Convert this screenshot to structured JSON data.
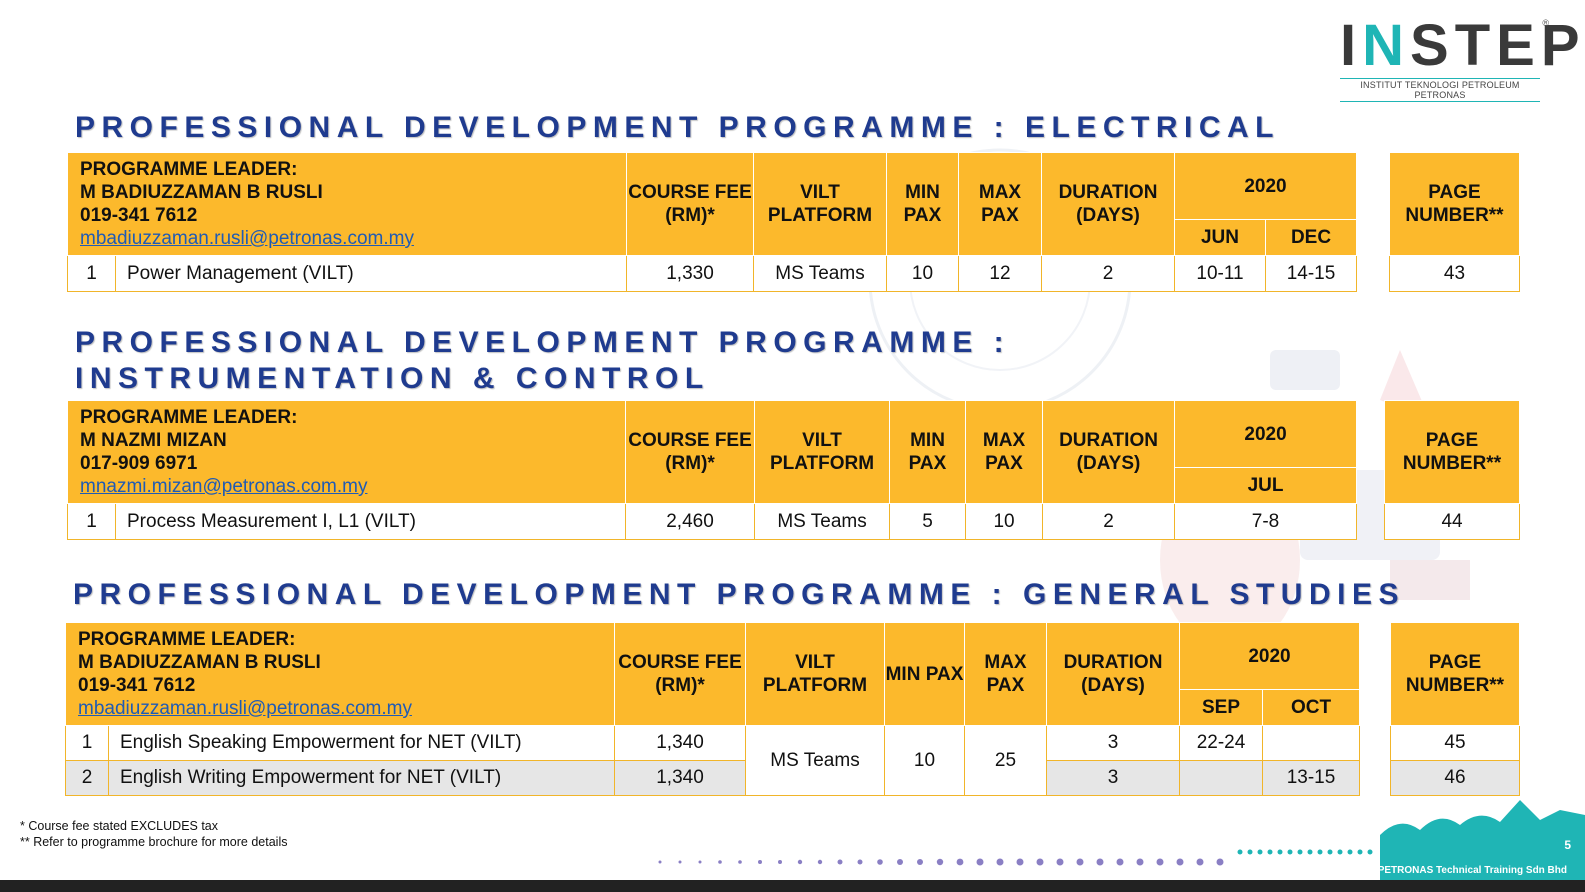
{
  "logo": {
    "text": "INSTEP",
    "sub": "INSTITUT TEKNOLOGI PETROLEUM PETRONAS"
  },
  "sections": [
    {
      "title": "PROFESSIONAL DEVELOPMENT PROGRAMME : ELECTRICAL",
      "leader": {
        "label": "PROGRAMME LEADER:",
        "name": "M BADIUZZAMAN B RUSLI",
        "phone": "019-341 7612",
        "email": "mbadiuzzaman.rusli@petronas.com.my"
      },
      "headers": {
        "fee": "COURSE FEE (RM)*",
        "platform": "VILT PLATFORM",
        "min": "MIN PAX",
        "max": "MAX PAX",
        "duration": "DURATION (DAYS)",
        "year": "2020",
        "months": [
          "JUN",
          "DEC"
        ],
        "page": "PAGE NUMBER**"
      },
      "rows": [
        {
          "no": "1",
          "name": "Power Management (VILT)",
          "fee": "1,330",
          "platform": "MS Teams",
          "min": "10",
          "max": "12",
          "duration": "2",
          "dates": [
            "10-11",
            "14-15"
          ],
          "page": "43"
        }
      ]
    },
    {
      "title": "PROFESSIONAL DEVELOPMENT PROGRAMME :",
      "title2": "INSTRUMENTATION & CONTROL",
      "leader": {
        "label": "PROGRAMME LEADER:",
        "name": "M NAZMI MIZAN",
        "phone": "017-909 6971",
        "email": "mnazmi.mizan@petronas.com.my"
      },
      "headers": {
        "fee": "COURSE FEE (RM)*",
        "platform": "VILT PLATFORM",
        "min": "MIN PAX",
        "max": "MAX PAX",
        "duration": "DURATION (DAYS)",
        "year": "2020",
        "months": [
          "JUL"
        ],
        "page": "PAGE NUMBER**"
      },
      "rows": [
        {
          "no": "1",
          "name": "Process Measurement I, L1 (VILT)",
          "fee": "2,460",
          "platform": "MS Teams",
          "min": "5",
          "max": "10",
          "duration": "2",
          "dates": [
            "7-8"
          ],
          "page": "44"
        }
      ]
    },
    {
      "title": "PROFESSIONAL DEVELOPMENT PROGRAMME : GENERAL STUDIES",
      "leader": {
        "label": "PROGRAMME LEADER:",
        "name": "M BADIUZZAMAN B RUSLI",
        "phone": "019-341 7612",
        "email": "mbadiuzzaman.rusli@petronas.com.my"
      },
      "headers": {
        "fee": "COURSE FEE (RM)*",
        "platform": "VILT PLATFORM",
        "min": "MIN PAX",
        "max": "MAX PAX",
        "duration": "DURATION (DAYS)",
        "year": "2020",
        "months": [
          "SEP",
          "OCT"
        ],
        "page": "PAGE NUMBER**"
      },
      "shared": {
        "platform": "MS Teams",
        "min": "10",
        "max": "25"
      },
      "rows": [
        {
          "no": "1",
          "name": "English Speaking Empowerment for NET (VILT)",
          "fee": "1,340",
          "duration": "3",
          "dates": [
            "22-24",
            ""
          ],
          "page": "45"
        },
        {
          "no": "2",
          "name": "English Writing Empowerment for NET (VILT)",
          "fee": "1,340",
          "duration": "3",
          "dates": [
            "",
            "13-15"
          ],
          "page": "46"
        }
      ]
    }
  ],
  "footnotes": [
    "* Course fee stated EXCLUDES tax",
    "** Refer to programme brochure for more details"
  ],
  "company": "PETRONAS Technical Training Sdn Bhd",
  "slide_number": "5"
}
